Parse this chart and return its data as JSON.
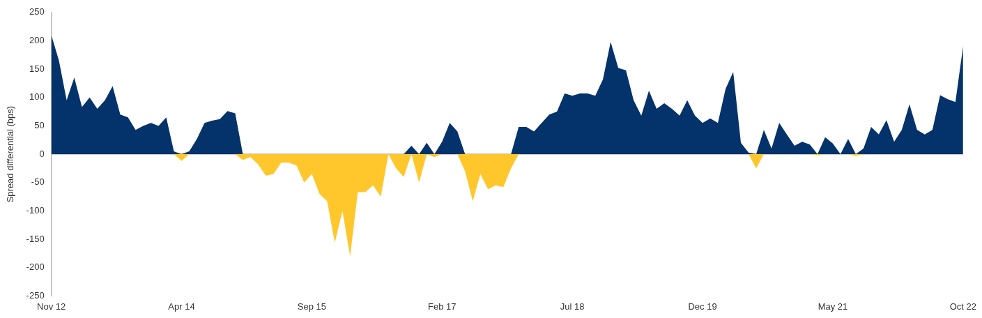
{
  "chart_data": {
    "type": "area",
    "ylabel": "Spread differential (bps)",
    "legend": false,
    "categories": [
      "Nov 12",
      null,
      null,
      null,
      null,
      null,
      null,
      null,
      null,
      null,
      null,
      null,
      null,
      null,
      null,
      null,
      null,
      "Apr 14",
      null,
      null,
      null,
      null,
      null,
      null,
      null,
      null,
      null,
      null,
      null,
      null,
      null,
      null,
      null,
      null,
      "Sep 15",
      null,
      null,
      null,
      null,
      null,
      null,
      null,
      null,
      null,
      null,
      null,
      null,
      null,
      null,
      null,
      null,
      "Feb 17",
      null,
      null,
      null,
      null,
      null,
      null,
      null,
      null,
      null,
      null,
      null,
      null,
      null,
      null,
      null,
      null,
      "Jul 18",
      null,
      null,
      null,
      null,
      null,
      null,
      null,
      null,
      null,
      null,
      null,
      null,
      null,
      null,
      null,
      null,
      "Dec 19",
      null,
      null,
      null,
      null,
      null,
      null,
      null,
      null,
      null,
      null,
      null,
      null,
      null,
      null,
      null,
      null,
      "May 21",
      null,
      null,
      null,
      null,
      null,
      null,
      null,
      null,
      null,
      null,
      null,
      null,
      null,
      null,
      null,
      null,
      "Oct 22"
    ],
    "series": [
      {
        "color": "#04326a",
        "values": [
          210,
          165,
          95,
          135,
          83,
          100,
          80,
          95,
          120,
          70,
          65,
          43,
          50,
          55,
          50,
          65,
          5,
          0,
          5,
          27,
          55,
          59,
          62,
          76,
          72,
          0,
          0,
          0,
          0,
          0,
          0,
          0,
          0,
          0,
          0,
          0,
          0,
          0,
          0,
          0,
          0,
          0,
          0,
          0,
          0,
          0,
          0,
          15,
          0,
          20,
          0,
          22,
          55,
          40,
          0,
          0,
          0,
          0,
          0,
          0,
          0,
          48,
          48,
          40,
          55,
          70,
          75,
          107,
          103,
          107,
          107,
          103,
          132,
          198,
          152,
          148,
          95,
          68,
          112,
          80,
          90,
          80,
          68,
          95,
          68,
          55,
          63,
          55,
          115,
          145,
          20,
          3,
          0,
          43,
          10,
          55,
          35,
          15,
          22,
          17,
          0,
          30,
          19,
          0,
          27,
          0,
          10,
          48,
          35,
          60,
          22,
          43,
          88,
          43,
          35,
          43,
          104,
          97,
          92,
          190
        ]
      },
      {
        "color": "#ffc72c",
        "values": [
          0,
          0,
          0,
          0,
          0,
          0,
          0,
          0,
          0,
          0,
          0,
          0,
          0,
          0,
          0,
          0,
          0,
          -12,
          0,
          0,
          0,
          0,
          0,
          0,
          0,
          -10,
          -5,
          -18,
          -38,
          -35,
          -15,
          -15,
          -20,
          -50,
          -35,
          -70,
          -83,
          -156,
          -100,
          -180,
          -67,
          -67,
          -55,
          -75,
          0,
          -25,
          -40,
          0,
          -50,
          0,
          -5,
          0,
          0,
          0,
          -30,
          -83,
          -35,
          -62,
          -55,
          -58,
          -25,
          0,
          0,
          0,
          0,
          0,
          0,
          0,
          0,
          0,
          0,
          0,
          0,
          0,
          0,
          0,
          0,
          0,
          0,
          0,
          0,
          0,
          0,
          0,
          0,
          0,
          0,
          0,
          0,
          0,
          0,
          0,
          -25,
          0,
          0,
          0,
          0,
          0,
          0,
          0,
          -2,
          0,
          0,
          0,
          0,
          -3,
          0,
          0,
          0,
          0,
          0,
          0,
          0,
          0,
          0,
          0,
          0,
          0,
          0,
          0
        ]
      }
    ],
    "ylim": [
      -250,
      250
    ],
    "yticks": [
      -250,
      -200,
      -150,
      -100,
      -50,
      0,
      50,
      100,
      150,
      200,
      250
    ]
  }
}
